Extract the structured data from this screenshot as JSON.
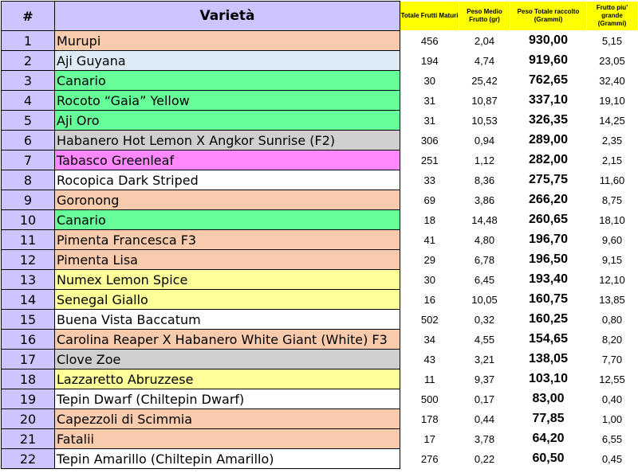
{
  "header": {
    "num": "#",
    "variety": "Varietà",
    "totale_frutti": "Totale Frutti Maturi",
    "peso_medio": "Peso Medio Frutto (gr)",
    "peso_totale": "Peso Totale raccolto (Grammi)",
    "frutto_grande": "Frutto piu' grande (Grammi)"
  },
  "colors": {
    "orange": "#f8cbad",
    "blue": "#ddebf7",
    "green": "#66ff99",
    "gray": "#d0cece",
    "pink": "#ff88ff",
    "white": "#ffffff",
    "yellow": "#ffff99",
    "number_column": "#ccc5ff",
    "header_small": "#ffff00"
  },
  "rows": [
    {
      "num": "1",
      "variety": "Murupi",
      "color": "orange",
      "frutti": "456",
      "medio": "2,04",
      "totale": "930,00",
      "grande": "5,15"
    },
    {
      "num": "2",
      "variety": "Aji Guyana",
      "color": "blue",
      "frutti": "194",
      "medio": "4,74",
      "totale": "919,60",
      "grande": "23,05"
    },
    {
      "num": "3",
      "variety": "Canario",
      "color": "green",
      "frutti": "30",
      "medio": "25,42",
      "totale": "762,65",
      "grande": "32,40"
    },
    {
      "num": "4",
      "variety": "Rocoto “Gaia” Yellow",
      "color": "green",
      "frutti": "31",
      "medio": "10,87",
      "totale": "337,10",
      "grande": "19,10"
    },
    {
      "num": "5",
      "variety": "Aji Oro",
      "color": "green",
      "frutti": "31",
      "medio": "10,53",
      "totale": "326,35",
      "grande": "14,25"
    },
    {
      "num": "6",
      "variety": "Habanero Hot Lemon X Angkor Sunrise (F2)",
      "color": "gray",
      "frutti": "306",
      "medio": "0,94",
      "totale": "289,00",
      "grande": "2,35"
    },
    {
      "num": "7",
      "variety": "Tabasco Greenleaf",
      "color": "pink",
      "frutti": "251",
      "medio": "1,12",
      "totale": "282,00",
      "grande": "2,15"
    },
    {
      "num": "8",
      "variety": "Rocopica Dark Striped",
      "color": "white",
      "frutti": "33",
      "medio": "8,36",
      "totale": "275,75",
      "grande": "11,60"
    },
    {
      "num": "9",
      "variety": "Goronong",
      "color": "orange",
      "frutti": "69",
      "medio": "3,86",
      "totale": "266,20",
      "grande": "8,75"
    },
    {
      "num": "10",
      "variety": "Canario",
      "color": "green",
      "frutti": "18",
      "medio": "14,48",
      "totale": "260,65",
      "grande": "18,10"
    },
    {
      "num": "11",
      "variety": "Pimenta Francesca F3",
      "color": "orange",
      "frutti": "41",
      "medio": "4,80",
      "totale": "196,70",
      "grande": "9,60"
    },
    {
      "num": "12",
      "variety": "Pimenta Lisa",
      "color": "orange",
      "frutti": "29",
      "medio": "6,78",
      "totale": "196,50",
      "grande": "9,15"
    },
    {
      "num": "13",
      "variety": "Numex Lemon Spice",
      "color": "yellow",
      "frutti": "30",
      "medio": "6,45",
      "totale": "193,40",
      "grande": "12,10"
    },
    {
      "num": "14",
      "variety": "Senegal Giallo",
      "color": "yellow",
      "frutti": "16",
      "medio": "10,05",
      "totale": "160,75",
      "grande": "13,85"
    },
    {
      "num": "15",
      "variety": "Buena Vista Baccatum",
      "color": "white",
      "frutti": "502",
      "medio": "0,32",
      "totale": "160,25",
      "grande": "0,80"
    },
    {
      "num": "16",
      "variety": "Carolina Reaper X Habanero White Giant (White) F3",
      "color": "orange",
      "frutti": "34",
      "medio": "4,55",
      "totale": "154,65",
      "grande": "8,20"
    },
    {
      "num": "17",
      "variety": "Clove Zoe",
      "color": "gray",
      "frutti": "43",
      "medio": "3,21",
      "totale": "138,05",
      "grande": "7,70"
    },
    {
      "num": "18",
      "variety": "Lazzaretto Abruzzese",
      "color": "yellow",
      "frutti": "11",
      "medio": "9,37",
      "totale": "103,10",
      "grande": "12,55"
    },
    {
      "num": "19",
      "variety": "Tepin Dwarf (Chiltepin Dwarf)",
      "color": "white",
      "frutti": "500",
      "medio": "0,17",
      "totale": "83,00",
      "grande": "0,40"
    },
    {
      "num": "20",
      "variety": "Capezzoli di Scimmia",
      "color": "orange",
      "frutti": "178",
      "medio": "0,44",
      "totale": "77,85",
      "grande": "1,00"
    },
    {
      "num": "21",
      "variety": "Fatalii",
      "color": "orange",
      "frutti": "17",
      "medio": "3,78",
      "totale": "64,20",
      "grande": "6,55"
    },
    {
      "num": "22",
      "variety": "Tepin Amarillo (Chiltepin Amarillo)",
      "color": "white",
      "frutti": "276",
      "medio": "0,22",
      "totale": "60,50",
      "grande": "0,45"
    }
  ]
}
